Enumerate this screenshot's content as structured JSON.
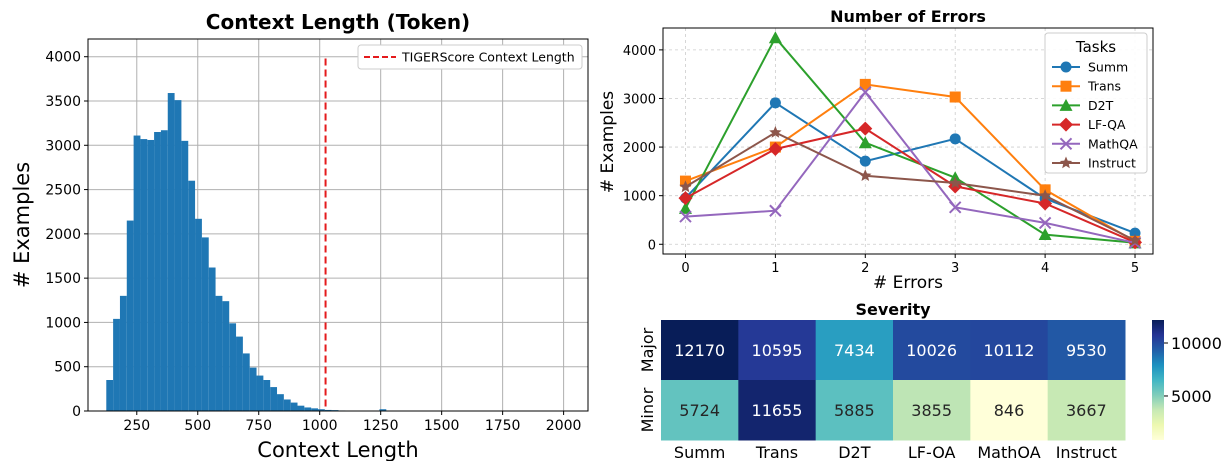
{
  "colors": {
    "hist_bar": "#1f77b4",
    "context_line": "#e41a1c",
    "series": [
      "#1f77b4",
      "#ff7f0e",
      "#2ca02c",
      "#d62728",
      "#9467bd",
      "#8c564b"
    ],
    "grid": "#b0b0b0"
  },
  "chart_data": [
    {
      "type": "bar",
      "subtype": "histogram",
      "title": "Context Length (Token)",
      "xlabel": "Context Length",
      "ylabel": "# Examples",
      "xlim": [
        50,
        2100
      ],
      "ylim": [
        0,
        4200
      ],
      "xticks": [
        250,
        500,
        750,
        1000,
        1250,
        1500,
        1750,
        2000
      ],
      "yticks": [
        0,
        500,
        1000,
        1500,
        2000,
        2500,
        3000,
        3500,
        4000
      ],
      "grid": true,
      "bin_start": 125,
      "bin_width": 28,
      "counts": [
        350,
        1040,
        1300,
        2150,
        3110,
        3070,
        3060,
        3150,
        3170,
        3590,
        3510,
        3050,
        2600,
        2170,
        1960,
        1620,
        1300,
        1240,
        990,
        840,
        650,
        490,
        400,
        350,
        270,
        190,
        130,
        95,
        60,
        40,
        30,
        20,
        12,
        10,
        6,
        4,
        3,
        2,
        2,
        1,
        20,
        1,
        1,
        1,
        1,
        1,
        1,
        1,
        1,
        1,
        1,
        1,
        1,
        1,
        1,
        1,
        1,
        1,
        1,
        1,
        1,
        1,
        1,
        1,
        1,
        1
      ],
      "reference_line": {
        "x": 1024,
        "label": "TIGERScore Context Length",
        "style": "dashed"
      },
      "legend_position": "upper right"
    },
    {
      "type": "line",
      "title": "Number of Errors",
      "xlabel": "# Errors",
      "ylabel": "# Examples",
      "x": [
        0,
        1,
        2,
        3,
        4,
        5
      ],
      "xlim": [
        -0.25,
        5.2
      ],
      "ylim": [
        -200,
        4450
      ],
      "yticks": [
        0,
        1000,
        2000,
        3000,
        4000
      ],
      "grid": true,
      "legend_title": "Tasks",
      "legend_position": "upper right",
      "series": [
        {
          "name": "Summ",
          "marker": "circle",
          "values": [
            950,
            2910,
            1710,
            2170,
            940,
            230
          ]
        },
        {
          "name": "Trans",
          "marker": "square",
          "values": [
            1300,
            2000,
            3290,
            3030,
            1120,
            60
          ]
        },
        {
          "name": "D2T",
          "marker": "triangle",
          "values": [
            740,
            4250,
            2090,
            1370,
            200,
            30
          ]
        },
        {
          "name": "LF-QA",
          "marker": "diamond",
          "values": [
            950,
            1960,
            2380,
            1190,
            840,
            40
          ]
        },
        {
          "name": "MathQA",
          "marker": "x",
          "values": [
            570,
            690,
            3130,
            760,
            440,
            30
          ]
        },
        {
          "name": "Instruct",
          "marker": "star",
          "values": [
            1180,
            2300,
            1410,
            1260,
            1000,
            80
          ]
        }
      ]
    },
    {
      "type": "heatmap",
      "title": "Severity",
      "x_categories": [
        "Summ",
        "Trans",
        "D2T",
        "LF-OA",
        "MathOA",
        "Instruct"
      ],
      "y_categories": [
        "Major",
        "Minor"
      ],
      "values": [
        [
          12170,
          10595,
          7434,
          10026,
          10112,
          9530
        ],
        [
          5724,
          11655,
          5885,
          3855,
          846,
          3667
        ]
      ],
      "colormap": "YlGnBu",
      "colorbar_ticks": [
        5000,
        10000
      ],
      "colorbar_range": [
        846,
        12170
      ]
    }
  ]
}
